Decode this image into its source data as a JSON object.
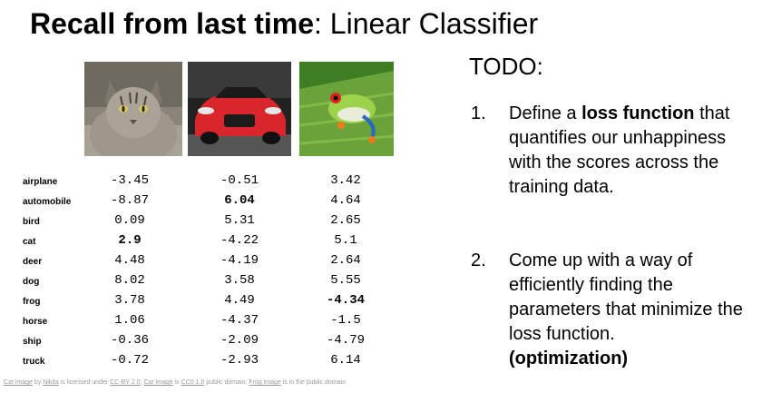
{
  "title": {
    "bold": "Recall from last time",
    "rest": ": Linear Classifier"
  },
  "images": {
    "cat": "cat",
    "car": "car",
    "frog": "frog"
  },
  "classes": [
    "airplane",
    "automobile",
    "bird",
    "cat",
    "deer",
    "dog",
    "frog",
    "horse",
    "ship",
    "truck"
  ],
  "scores": {
    "cat": [
      "-3.45",
      "-8.87",
      "0.09",
      "2.9",
      "4.48",
      "8.02",
      "3.78",
      "1.06",
      "-0.36",
      "-0.72"
    ],
    "car": [
      "-0.51",
      "6.04",
      "5.31",
      "-4.22",
      "-4.19",
      "3.58",
      "4.49",
      "-4.37",
      "-2.09",
      "-2.93"
    ],
    "frog": [
      "3.42",
      "4.64",
      "2.65",
      "5.1",
      "2.64",
      "5.55",
      "-4.34",
      "-1.5",
      "-4.79",
      "6.14"
    ]
  },
  "bold_index": {
    "cat": 3,
    "car": 1,
    "frog": 6
  },
  "credits": {
    "a": "Cat image",
    "b": " by ",
    "c": "Nikita",
    "d": " is licensed under ",
    "e": "CC-BY 2.0",
    "f": "; ",
    "g": "Car image",
    "h": " is ",
    "i": "CC0 1.0",
    "j": " public domain; ",
    "k": "Frog image",
    "l": " is in the public domain"
  },
  "todo": {
    "heading": "TODO:",
    "item1_num": "1.",
    "item1_pre": "Define a ",
    "item1_bold": "loss function",
    "item1_post": " that quantifies our unhappiness with the scores across the training data.",
    "item2_num": "2.",
    "item2_text": "Come up with a way of efficiently finding the parameters that minimize the loss function.",
    "item2_bold": "(optimization)"
  }
}
